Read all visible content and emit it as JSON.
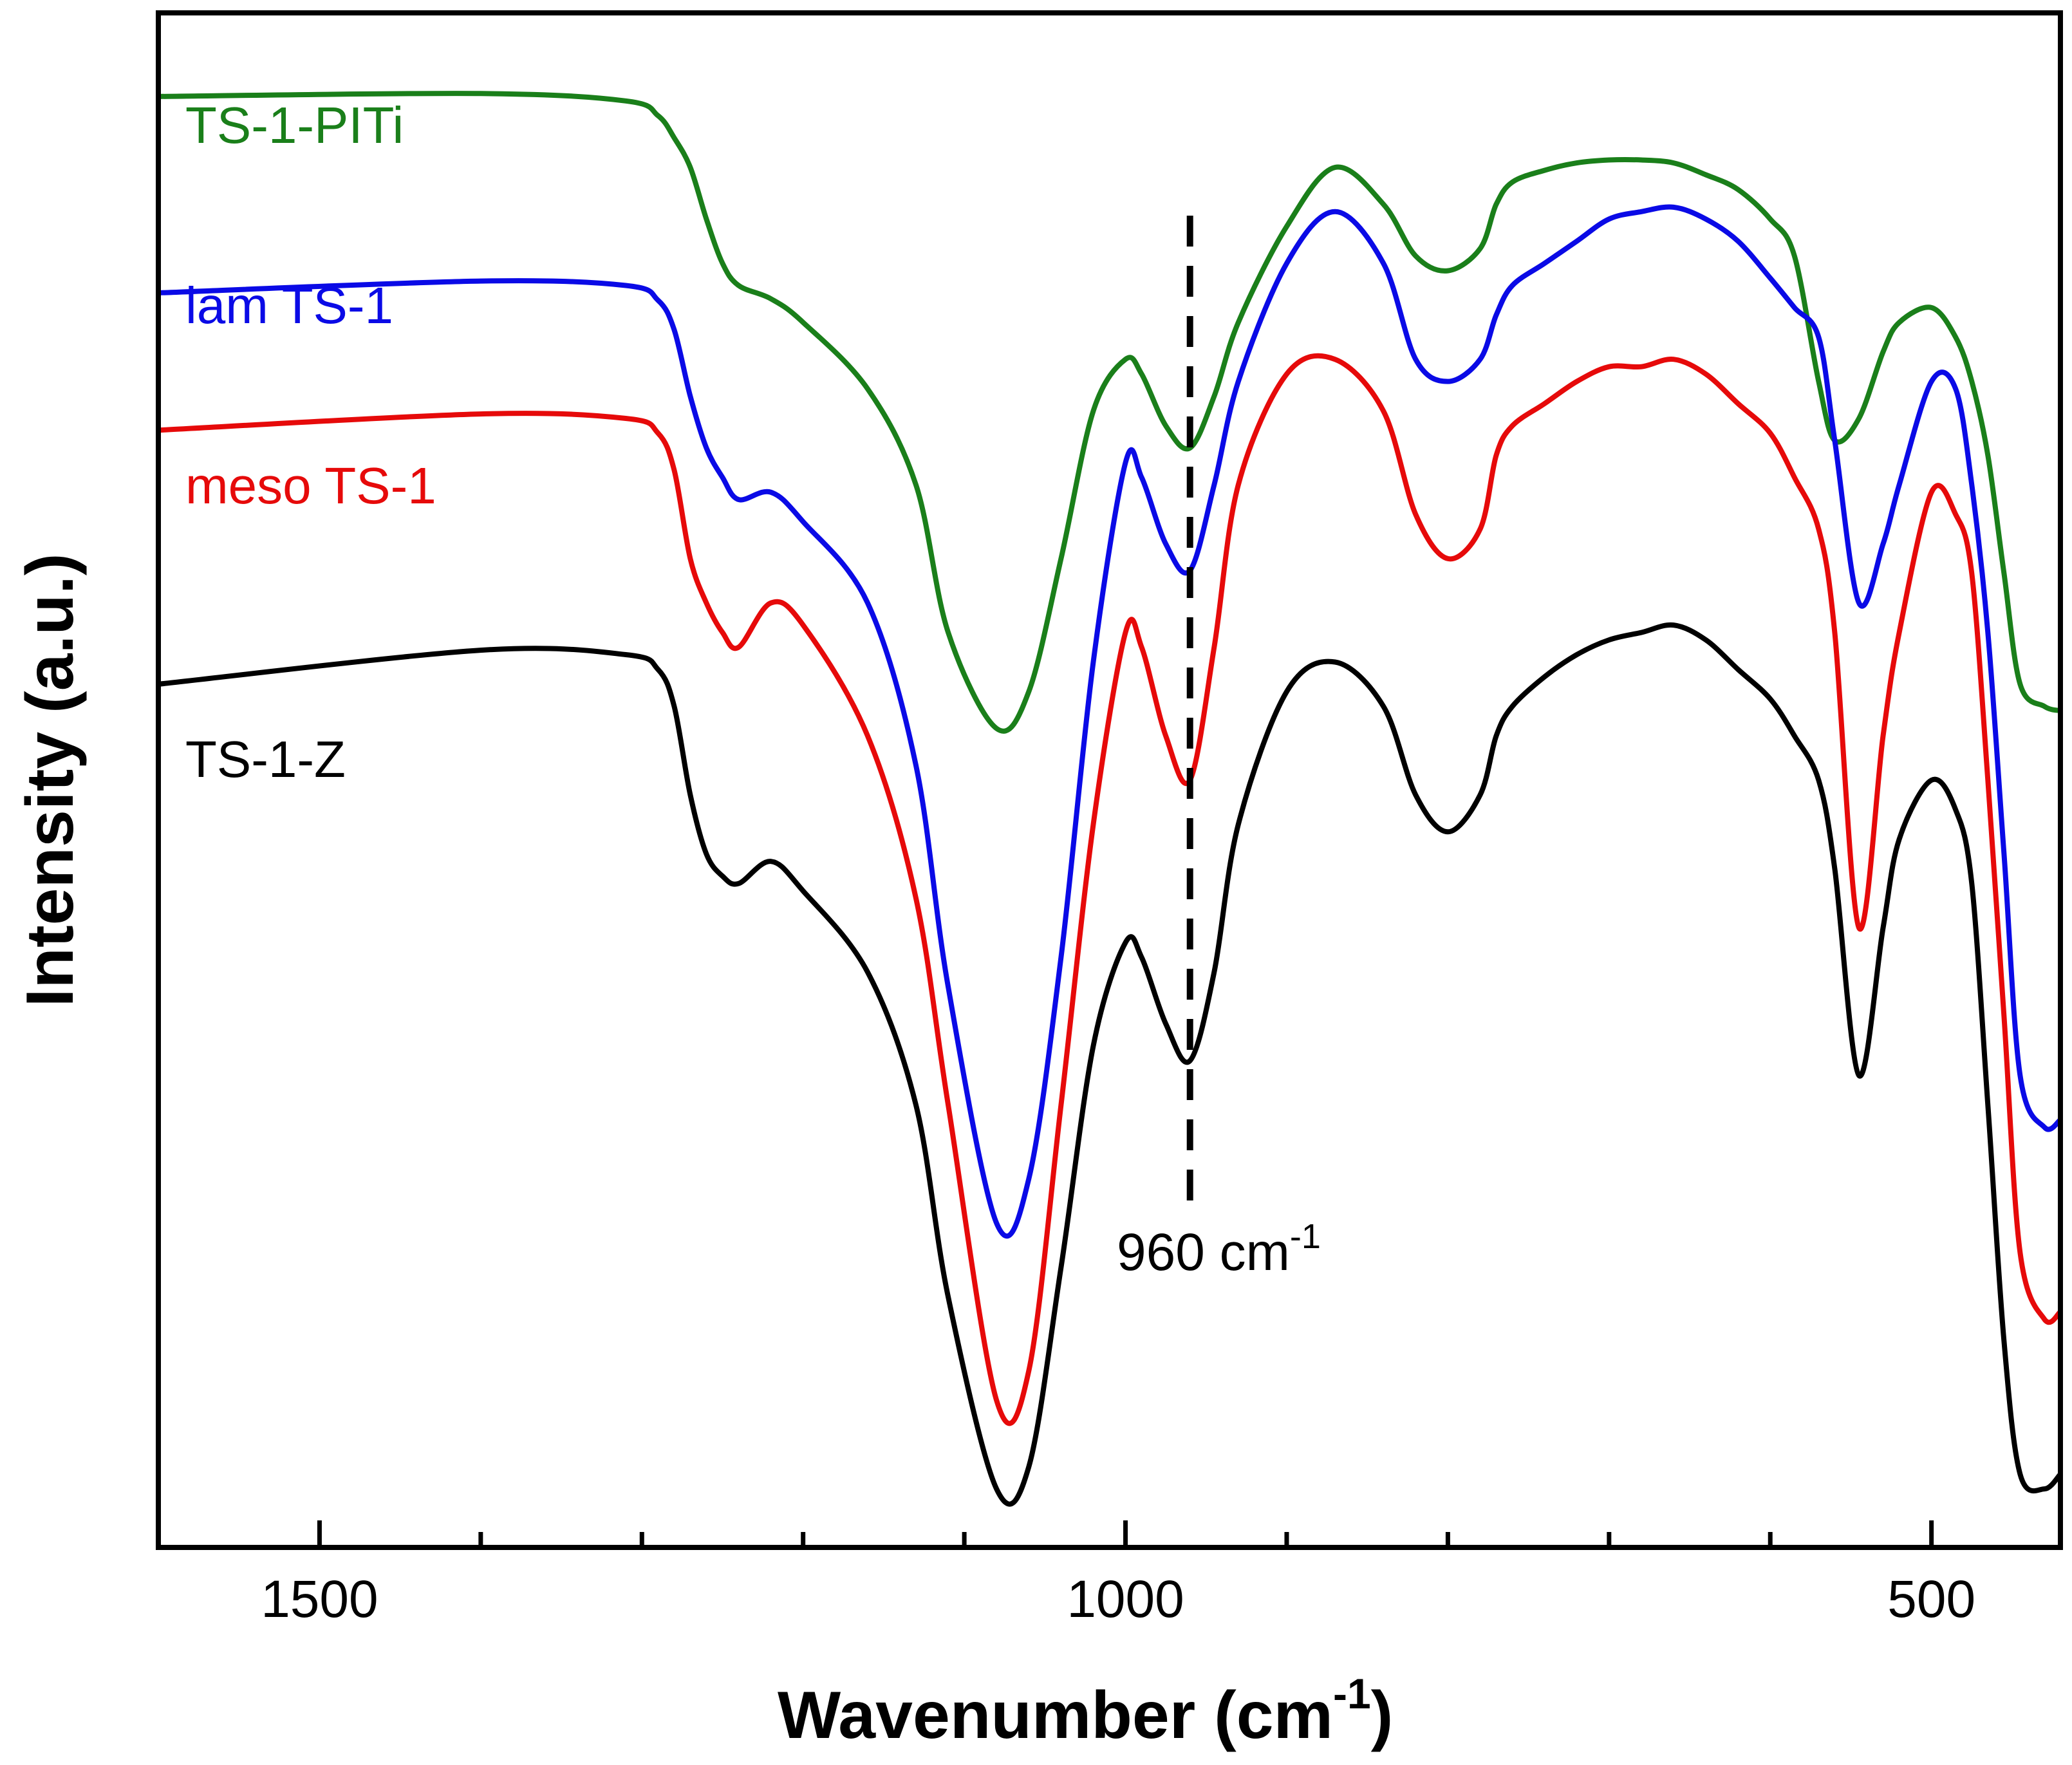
{
  "chart_data": {
    "type": "line",
    "title": "",
    "xlabel": "Wavenumber (cm",
    "xlabel_sup": "-1",
    "xlabel_end": ")",
    "ylabel": "Intensity (a.u.)",
    "xlim": [
      1600,
      420
    ],
    "ylim": [
      0,
      100
    ],
    "x_reversed": true,
    "y_ticks_shown": false,
    "x_ticks_major": [
      1500,
      1000,
      500
    ],
    "x_ticks_minor": [
      1600,
      1400,
      1300,
      1200,
      1100,
      900,
      800,
      700,
      600
    ],
    "x_tick_labels": [
      "1500",
      "1000",
      "500"
    ],
    "annotation": {
      "text": "960 cm",
      "sup": "-1",
      "x": 960
    },
    "series": [
      {
        "name": "TS-1-PITi",
        "color": "#1a7f1a",
        "x": [
          1600,
          1400,
          1310,
          1290,
          1280,
          1270,
          1260,
          1250,
          1240,
          1220,
          1200,
          1160,
          1130,
          1110,
          1080,
          1060,
          1040,
          1020,
          1000,
          990,
          975,
          960,
          945,
          930,
          900,
          870,
          840,
          820,
          800,
          780,
          770,
          760,
          740,
          720,
          700,
          680,
          660,
          640,
          620,
          600,
          585,
          570,
          560,
          545,
          530,
          520,
          500,
          485,
          475,
          465,
          455,
          445,
          430,
          420
        ],
        "y": [
          96.3,
          96.5,
          96.0,
          95.0,
          93.5,
          91.5,
          88.0,
          85.0,
          83.5,
          82.6,
          81.0,
          76.5,
          70.0,
          60.0,
          53.5,
          56.0,
          65.0,
          75.0,
          78.5,
          77.5,
          74.0,
          72.5,
          76.0,
          81.0,
          87.5,
          91.5,
          89.0,
          85.5,
          84.5,
          86.0,
          89.0,
          90.5,
          91.3,
          91.8,
          92.0,
          92.0,
          91.8,
          91.0,
          90.0,
          88.0,
          85.5,
          77.0,
          73.0,
          74.5,
          79.0,
          81.0,
          82.0,
          80.0,
          77.0,
          72.0,
          64.0,
          56.5,
          55.0,
          54.7
        ]
      },
      {
        "name": "lam TS-1",
        "color": "#0a0ae6",
        "x": [
          1600,
          1400,
          1310,
          1290,
          1280,
          1270,
          1260,
          1250,
          1240,
          1220,
          1200,
          1160,
          1130,
          1110,
          1080,
          1060,
          1040,
          1020,
          1000,
          990,
          975,
          960,
          945,
          930,
          900,
          870,
          840,
          820,
          800,
          780,
          770,
          760,
          740,
          720,
          700,
          680,
          660,
          640,
          620,
          600,
          585,
          570,
          560,
          545,
          530,
          520,
          500,
          485,
          475,
          465,
          455,
          445,
          430,
          420
        ],
        "y": [
          83.0,
          83.8,
          83.5,
          82.5,
          80.5,
          76.0,
          72.5,
          70.5,
          69.0,
          69.5,
          67.5,
          62.0,
          51.0,
          36.0,
          20.0,
          23.0,
          38.0,
          58.0,
          71.5,
          70.5,
          66.0,
          64.2,
          70.0,
          77.0,
          85.0,
          88.5,
          85.0,
          78.5,
          77.0,
          78.5,
          81.5,
          83.5,
          85.0,
          86.5,
          88.0,
          88.5,
          88.8,
          88.0,
          86.5,
          84.0,
          82.0,
          80.0,
          73.0,
          62.0,
          66.0,
          70.0,
          77.0,
          76.5,
          70.0,
          60.0,
          45.0,
          30.0,
          26.5,
          27.0
        ]
      },
      {
        "name": "meso TS-1",
        "color": "#e60a0a",
        "x": [
          1600,
          1400,
          1310,
          1290,
          1280,
          1270,
          1260,
          1250,
          1240,
          1220,
          1200,
          1160,
          1130,
          1110,
          1080,
          1060,
          1040,
          1020,
          1000,
          990,
          975,
          960,
          945,
          930,
          900,
          870,
          840,
          820,
          800,
          780,
          770,
          760,
          740,
          720,
          700,
          680,
          660,
          640,
          620,
          600,
          585,
          570,
          560,
          545,
          530,
          520,
          500,
          485,
          475,
          465,
          455,
          445,
          430,
          420
        ],
        "y": [
          73.7,
          74.8,
          74.5,
          73.5,
          71.0,
          65.0,
          62.0,
          60.0,
          59.0,
          62.0,
          60.5,
          53.0,
          42.0,
          28.0,
          8.0,
          10.0,
          28.0,
          47.0,
          60.0,
          59.0,
          53.0,
          50.0,
          59.0,
          70.0,
          77.5,
          78.5,
          75.0,
          68.0,
          65.0,
          67.0,
          72.0,
          74.0,
          75.5,
          77.0,
          78.0,
          78.0,
          78.5,
          77.5,
          75.5,
          73.5,
          70.5,
          67.0,
          60.0,
          40.0,
          53.0,
          60.0,
          69.5,
          68.0,
          64.0,
          50.0,
          34.0,
          18.0,
          13.5,
          14.0
        ]
      },
      {
        "name": "TS-1-Z",
        "color": "#000000",
        "x": [
          1600,
          1400,
          1310,
          1290,
          1280,
          1270,
          1260,
          1250,
          1240,
          1220,
          1200,
          1160,
          1130,
          1110,
          1080,
          1060,
          1040,
          1020,
          1000,
          990,
          975,
          960,
          945,
          930,
          900,
          870,
          840,
          820,
          800,
          780,
          770,
          760,
          740,
          720,
          700,
          680,
          660,
          640,
          620,
          600,
          585,
          570,
          560,
          545,
          530,
          520,
          500,
          485,
          475,
          465,
          455,
          445,
          430,
          420
        ],
        "y": [
          56.5,
          58.8,
          58.5,
          57.5,
          55.0,
          49.0,
          45.0,
          43.5,
          43.0,
          44.5,
          42.5,
          37.0,
          28.0,
          15.0,
          2.0,
          3.5,
          17.0,
          32.0,
          39.0,
          38.0,
          33.5,
          31.0,
          37.0,
          47.0,
          56.0,
          58.0,
          55.0,
          49.0,
          46.5,
          49.0,
          53.0,
          55.0,
          57.0,
          58.5,
          59.5,
          60.0,
          60.5,
          59.5,
          57.5,
          55.5,
          53.0,
          50.0,
          44.0,
          30.0,
          40.0,
          46.0,
          50.0,
          48.0,
          43.0,
          28.0,
          12.0,
          3.0,
          2.0,
          3.0
        ]
      }
    ]
  }
}
